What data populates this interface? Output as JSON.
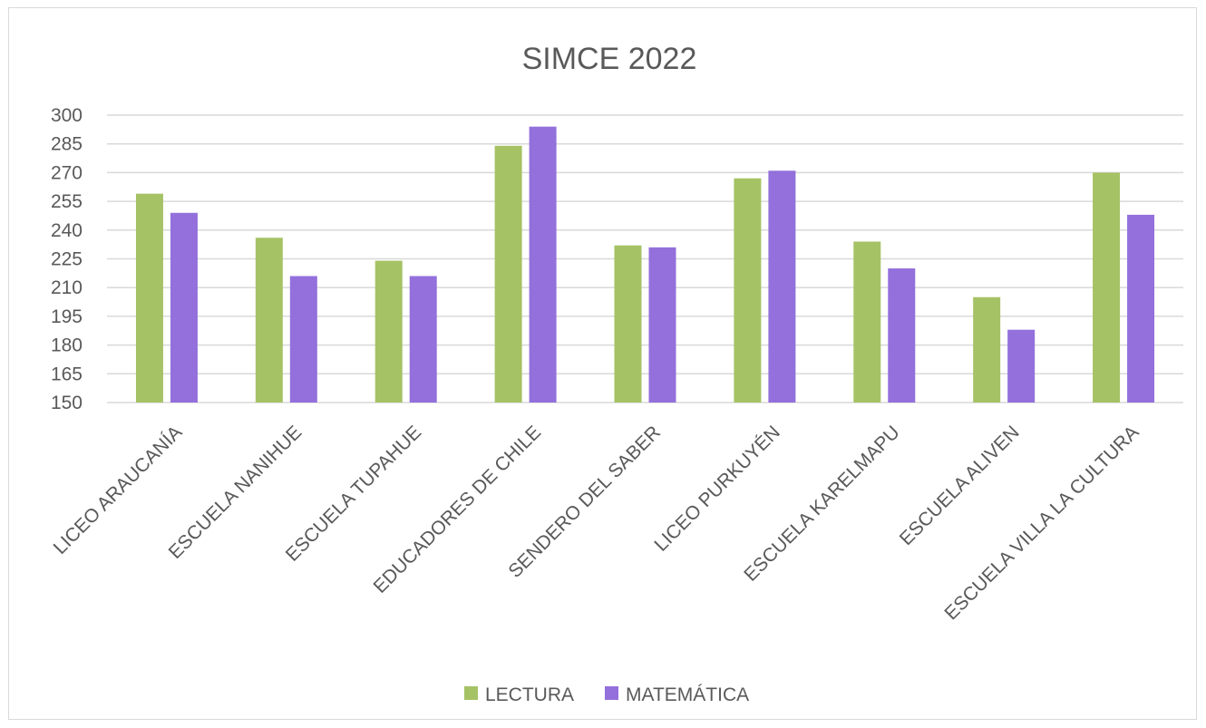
{
  "chart_data": {
    "type": "bar",
    "title": "SIMCE 2022",
    "xlabel": "",
    "ylabel": "",
    "ylim": [
      150,
      300
    ],
    "yticks": [
      150,
      165,
      180,
      195,
      210,
      225,
      240,
      255,
      270,
      285,
      300
    ],
    "grid": true,
    "legend_position": "bottom",
    "categories": [
      "LICEO ARAUCANÍA",
      "ESCUELA NANIHUE",
      "ESCUELA TUPAHUE",
      "EDUCADORES DE  CHILE",
      "SENDERO DEL SABER",
      "LICEO PURKUYÉN",
      "ESCUELA KARELMAPU",
      "ESCUELA ALIVEN",
      "ESCUELA VILLA LA CULTURA"
    ],
    "series": [
      {
        "name": "LECTURA",
        "color": "#a5c265",
        "values": [
          259,
          236,
          224,
          284,
          232,
          267,
          234,
          205,
          270
        ]
      },
      {
        "name": "MATEMÁTICA",
        "color": "#9370db",
        "values": [
          249,
          216,
          216,
          294,
          231,
          271,
          220,
          188,
          248
        ]
      }
    ]
  }
}
